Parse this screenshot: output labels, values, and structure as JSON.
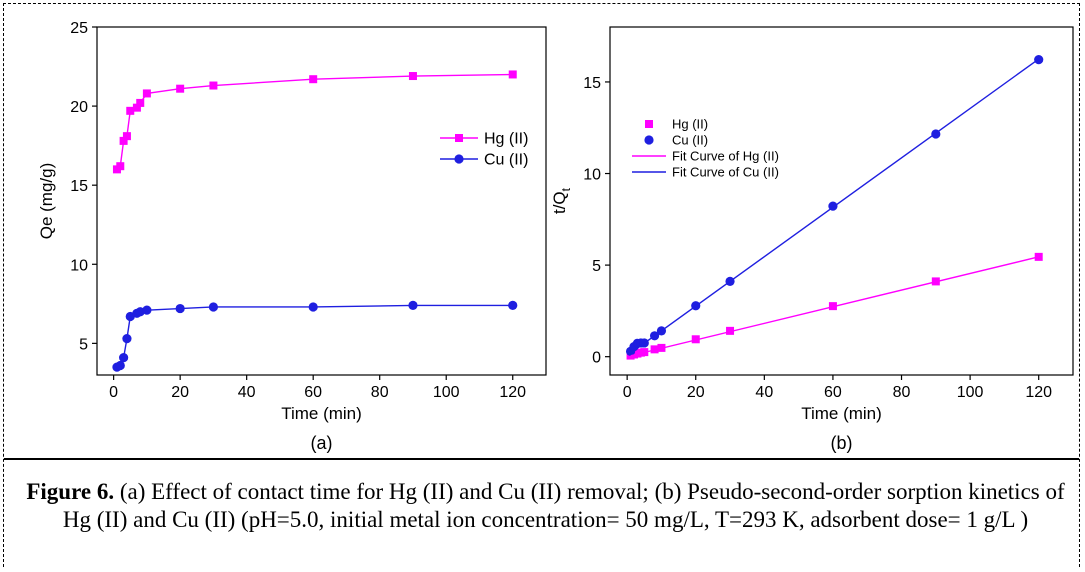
{
  "colors": {
    "hg": "#ff00ff",
    "cu": "#1f1fe0",
    "axis": "#000000"
  },
  "caption": {
    "label": "Figure 6.",
    "text": " (a) Effect of contact time for Hg (II) and Cu (II) removal; (b) Pseudo-second-order sorption kinetics of Hg (II) and Cu (II) (pH=5.0, initial metal ion concentration= 50 mg/L, T=293 K, adsorbent dose= 1 g/L )"
  },
  "chart_data": [
    {
      "type": "line",
      "panel_label": "(a)",
      "xlabel": "Time (min)",
      "ylabel": "Qe (mg/g)",
      "xlim": [
        -5,
        130
      ],
      "ylim": [
        3,
        25
      ],
      "xticks": [
        0,
        20,
        40,
        60,
        80,
        100,
        120
      ],
      "yticks": [
        5,
        10,
        15,
        20,
        25
      ],
      "legend": {
        "position": "center-right"
      },
      "series": [
        {
          "name": "Hg (II)",
          "marker": "square",
          "color": "#ff00ff",
          "x": [
            1,
            2,
            3,
            4,
            5,
            7,
            8,
            10,
            20,
            30,
            60,
            90,
            120
          ],
          "y": [
            16.0,
            16.2,
            17.8,
            18.1,
            19.7,
            19.9,
            20.2,
            20.8,
            21.1,
            21.3,
            21.7,
            21.9,
            22.0
          ]
        },
        {
          "name": "Cu (II)",
          "marker": "circle",
          "color": "#1f1fe0",
          "x": [
            1,
            2,
            3,
            4,
            5,
            7,
            8,
            10,
            20,
            30,
            60,
            90,
            120
          ],
          "y": [
            3.5,
            3.6,
            4.1,
            5.3,
            6.7,
            6.9,
            7.0,
            7.1,
            7.2,
            7.3,
            7.3,
            7.4,
            7.4
          ]
        }
      ]
    },
    {
      "type": "scatter",
      "panel_label": "(b)",
      "xlabel": "Time (min)",
      "ylabel": "t/Q",
      "ylabel_sub": "t",
      "xlim": [
        -5,
        130
      ],
      "ylim": [
        -1,
        18
      ],
      "xticks": [
        0,
        20,
        40,
        60,
        80,
        100,
        120
      ],
      "yticks": [
        0,
        5,
        10,
        15
      ],
      "legend": {
        "position": "upper-left"
      },
      "series": [
        {
          "name": "Hg (II)",
          "marker": "square",
          "color": "#ff00ff",
          "x": [
            1,
            2,
            3,
            4,
            5,
            8,
            10,
            20,
            30,
            60,
            90,
            120
          ],
          "y": [
            0.06,
            0.12,
            0.17,
            0.22,
            0.25,
            0.4,
            0.48,
            0.95,
            1.41,
            2.76,
            4.11,
            5.45
          ]
        },
        {
          "name": "Cu (II)",
          "marker": "circle",
          "color": "#1f1fe0",
          "x": [
            1,
            2,
            3,
            4,
            5,
            8,
            10,
            20,
            30,
            60,
            90,
            120
          ],
          "y": [
            0.29,
            0.55,
            0.73,
            0.75,
            0.75,
            1.14,
            1.41,
            2.78,
            4.11,
            8.22,
            12.16,
            16.22
          ]
        },
        {
          "name": "Fit Curve of Hg (II)",
          "line": true,
          "color": "#ff00ff",
          "x": [
            1,
            120
          ],
          "y": [
            0.05,
            5.45
          ]
        },
        {
          "name": "Fit Curve of Cu (II)",
          "line": true,
          "color": "#1f1fe0",
          "x": [
            1,
            120
          ],
          "y": [
            0.2,
            16.25
          ]
        }
      ]
    }
  ]
}
